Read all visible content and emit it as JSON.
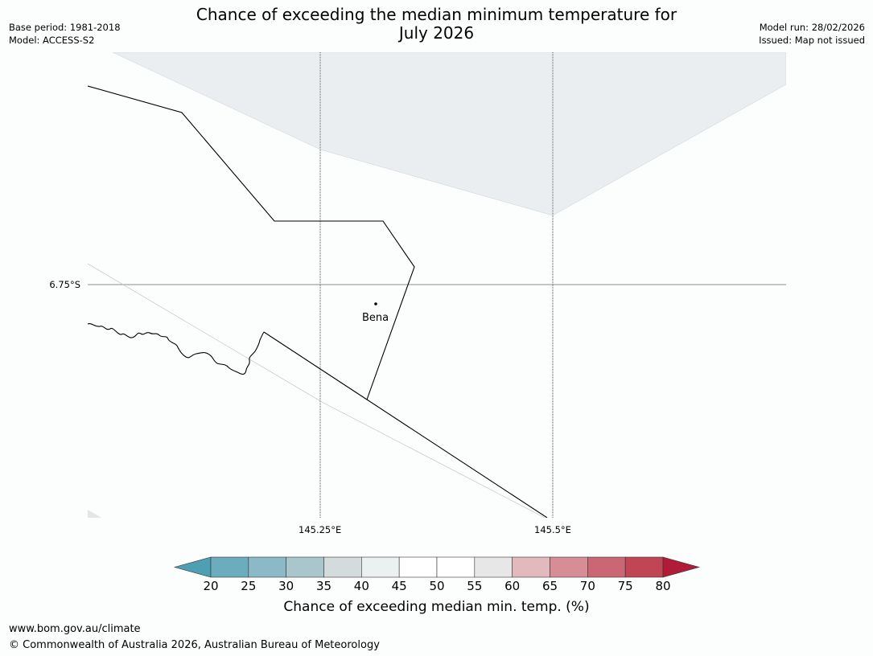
{
  "header": {
    "title_line1": "Chance of exceeding the median minimum temperature for",
    "title_line2": "July 2026",
    "base_period": "Base period: 1981-2018",
    "model": "Model: ACCESS-S2",
    "model_run": "Model run: 28/02/2026",
    "issued": "Issued: Map not issued"
  },
  "map": {
    "latitude_labels": [
      "6.75°S"
    ],
    "longitude_labels": [
      "145.25°E",
      "145.5°E"
    ],
    "places": [
      {
        "name": "Bena"
      }
    ],
    "colors": {
      "background": "#fcfefd",
      "probability_fill": "#eaeef1",
      "boundary": "#000000",
      "gridline": "#555555"
    }
  },
  "colorbar": {
    "ticks": [
      "20",
      "25",
      "30",
      "35",
      "40",
      "45",
      "50",
      "55",
      "60",
      "65",
      "70",
      "75",
      "80"
    ],
    "bins": [
      {
        "range": "<20",
        "color": "#4e9fb1"
      },
      {
        "range": "20-25",
        "color": "#6badbd"
      },
      {
        "range": "25-30",
        "color": "#8bb9c7"
      },
      {
        "range": "30-35",
        "color": "#a8c6cc"
      },
      {
        "range": "35-40",
        "color": "#d4dbdc"
      },
      {
        "range": "40-45",
        "color": "#ebf0f1"
      },
      {
        "range": "45-50",
        "color": "#ffffff"
      },
      {
        "range": "50-55",
        "color": "#ffffff"
      },
      {
        "range": "55-60",
        "color": "#e8e7e7"
      },
      {
        "range": "60-65",
        "color": "#e2b9bd"
      },
      {
        "range": "65-70",
        "color": "#d68d96"
      },
      {
        "range": "70-75",
        "color": "#cb6775"
      },
      {
        "range": "75-80",
        "color": "#c04656"
      },
      {
        "range": ">80",
        "color": "#b01c38"
      }
    ],
    "label": "Chance of exceeding median min. temp. (%)"
  },
  "footer": {
    "url": "www.bom.gov.au/climate",
    "copyright": "© Commonwealth of Australia 2026, Australian Bureau of Meteorology"
  }
}
